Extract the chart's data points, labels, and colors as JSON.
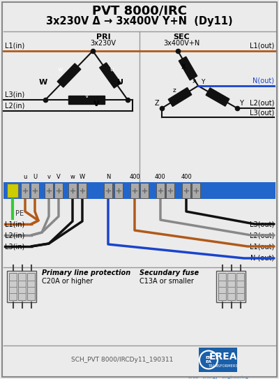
{
  "title1": "PVT 8000/IRC",
  "title2": "3x230V Δ → 3x400V Y+N  (Dy11)",
  "bg_color": "#ebebeb",
  "border_color": "#888888",
  "pri_label": "PRI",
  "pri_sublabel": "3x230V",
  "sec_label": "SEC",
  "sec_sublabel": "3x400V+N",
  "L1in": "L1(in)",
  "L2in": "L2(in)",
  "L3in": "L3(in)",
  "L1out": "L1(out)",
  "L2out": "L2(out)",
  "L3out": "L3(out)",
  "Nout": "N(out)",
  "N_out2": "N (out)",
  "wire_brown": "#b05a1a",
  "wire_black": "#111111",
  "wire_grey": "#888888",
  "wire_blue": "#1a44cc",
  "coil_color": "#111111",
  "terminal_blue": "#2266cc",
  "terminal_grey": "#aaaaaa",
  "terminal_yg": "#cccc00",
  "footer_text": "SCH_PVT 8000/IRCDy11_190311",
  "erea_blue": "#1a5fa8",
  "primary_protection_label": "Primary line protection",
  "primary_protection_sub": "C20A or higher",
  "secondary_fuse_label": "Secundary fuse",
  "secondary_fuse_sub": "C13A or smaller",
  "sep_color": "#999999"
}
